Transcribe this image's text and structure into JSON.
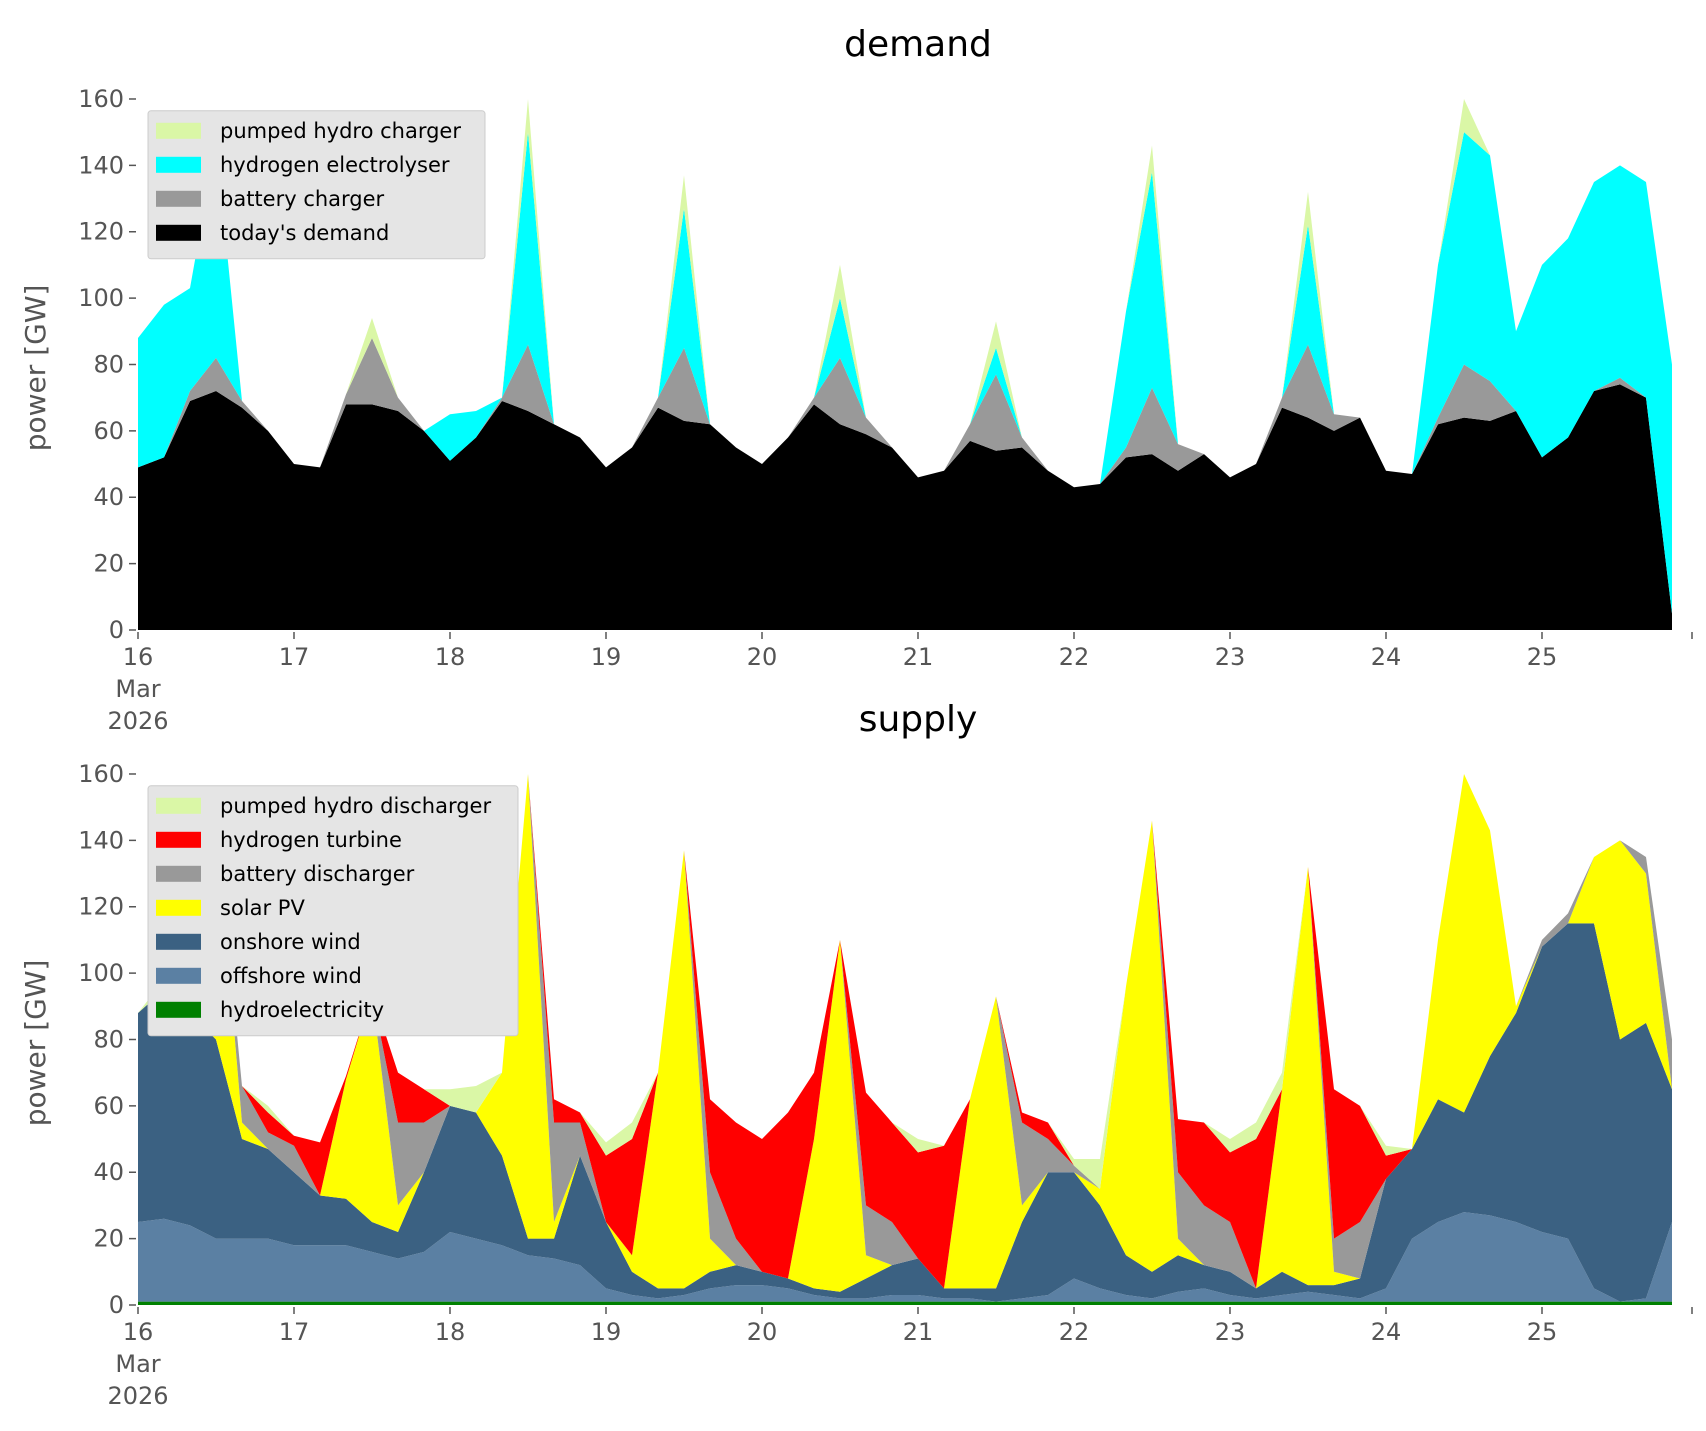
{
  "chart_data": [
    {
      "type": "stacked_area",
      "title": "demand",
      "ylabel": "power [GW]",
      "x": [
        "2026-03-16T00:00",
        "2026-03-16T04:00",
        "2026-03-16T08:00",
        "2026-03-16T12:00",
        "2026-03-16T16:00",
        "2026-03-16T20:00",
        "2026-03-17T00:00",
        "2026-03-17T04:00",
        "2026-03-17T08:00",
        "2026-03-17T12:00",
        "2026-03-17T16:00",
        "2026-03-17T20:00",
        "2026-03-18T00:00",
        "2026-03-18T04:00",
        "2026-03-18T08:00",
        "2026-03-18T12:00",
        "2026-03-18T16:00",
        "2026-03-18T20:00",
        "2026-03-19T00:00",
        "2026-03-19T04:00",
        "2026-03-19T08:00",
        "2026-03-19T12:00",
        "2026-03-19T16:00",
        "2026-03-19T20:00",
        "2026-03-20T00:00",
        "2026-03-20T04:00",
        "2026-03-20T08:00",
        "2026-03-20T12:00",
        "2026-03-20T16:00",
        "2026-03-20T20:00",
        "2026-03-21T00:00",
        "2026-03-21T04:00",
        "2026-03-21T08:00",
        "2026-03-21T12:00",
        "2026-03-21T16:00",
        "2026-03-21T20:00",
        "2026-03-22T00:00",
        "2026-03-22T04:00",
        "2026-03-22T08:00",
        "2026-03-22T12:00",
        "2026-03-22T16:00",
        "2026-03-22T20:00",
        "2026-03-23T00:00",
        "2026-03-23T04:00",
        "2026-03-23T08:00",
        "2026-03-23T12:00",
        "2026-03-23T16:00",
        "2026-03-23T20:00",
        "2026-03-24T00:00",
        "2026-03-24T04:00",
        "2026-03-24T08:00",
        "2026-03-24T12:00",
        "2026-03-24T16:00",
        "2026-03-24T20:00",
        "2026-03-25T00:00",
        "2026-03-25T04:00",
        "2026-03-25T08:00",
        "2026-03-25T12:00",
        "2026-03-25T16:00",
        "2026-03-25T20:00"
      ],
      "xlim": [
        "2026-03-16T00:00",
        "2026-03-26T00:00"
      ],
      "xticks": [
        {
          "value": "2026-03-16T00:00",
          "label": [
            "16",
            "Mar",
            "2026"
          ]
        },
        {
          "value": "2026-03-17T00:00",
          "label": "17"
        },
        {
          "value": "2026-03-18T00:00",
          "label": "18"
        },
        {
          "value": "2026-03-19T00:00",
          "label": "19"
        },
        {
          "value": "2026-03-20T00:00",
          "label": "20"
        },
        {
          "value": "2026-03-21T00:00",
          "label": "21"
        },
        {
          "value": "2026-03-22T00:00",
          "label": "22"
        },
        {
          "value": "2026-03-23T00:00",
          "label": "23"
        },
        {
          "value": "2026-03-24T00:00",
          "label": "24"
        },
        {
          "value": "2026-03-25T00:00",
          "label": "25"
        }
      ],
      "ylim": [
        0,
        170
      ],
      "yticks": [
        0,
        20,
        40,
        60,
        80,
        100,
        120,
        140,
        160
      ],
      "legend": "upper left",
      "series": [
        {
          "name": "pumped hydro charger",
          "color": "#daf7a6",
          "values": [
            0,
            0,
            0,
            0,
            0,
            0,
            0,
            0,
            0,
            6,
            0,
            0,
            0,
            0,
            0,
            10,
            0,
            0,
            0,
            0,
            0,
            10,
            0,
            0,
            0,
            0,
            0,
            10,
            0,
            0,
            0,
            0,
            0,
            8,
            0,
            0,
            0,
            0,
            0,
            8,
            0,
            0,
            0,
            0,
            0,
            10,
            0,
            0,
            0,
            0,
            0,
            10,
            0,
            0,
            0,
            0,
            0,
            0,
            0,
            0
          ]
        },
        {
          "name": "hydrogen electrolyser",
          "color": "#00ffff",
          "values": [
            39,
            46,
            31,
            65,
            0,
            0,
            0,
            0,
            0,
            0,
            0,
            0,
            14,
            8,
            0,
            64,
            0,
            0,
            0,
            0,
            0,
            42,
            0,
            0,
            0,
            0,
            0,
            18,
            0,
            0,
            0,
            0,
            0,
            8,
            0,
            0,
            0,
            0,
            41,
            65,
            0,
            0,
            0,
            0,
            0,
            36,
            0,
            0,
            0,
            0,
            46,
            70,
            68,
            24,
            58,
            60,
            63,
            64,
            65,
            75
          ]
        },
        {
          "name": "battery charger",
          "color": "#999999",
          "values": [
            0,
            0,
            3,
            10,
            2,
            0,
            0,
            0,
            3,
            20,
            4,
            0,
            0,
            0,
            1,
            20,
            0,
            0,
            0,
            0,
            3,
            22,
            0,
            0,
            0,
            0,
            2,
            20,
            5,
            0,
            0,
            0,
            5,
            23,
            3,
            0,
            0,
            0,
            3,
            20,
            8,
            0,
            0,
            0,
            3,
            22,
            5,
            0,
            0,
            0,
            2,
            16,
            12,
            0,
            0,
            0,
            0,
            2,
            0,
            0
          ]
        },
        {
          "name": "today's demand",
          "color": "#000000",
          "values": [
            49,
            52,
            69,
            72,
            67,
            60,
            50,
            49,
            68,
            68,
            66,
            60,
            51,
            58,
            69,
            66,
            62,
            58,
            49,
            55,
            67,
            63,
            62,
            55,
            50,
            58,
            68,
            62,
            59,
            55,
            46,
            48,
            57,
            54,
            55,
            48,
            43,
            44,
            52,
            53,
            48,
            53,
            46,
            50,
            67,
            64,
            60,
            64,
            48,
            47,
            62,
            64,
            63,
            66,
            52,
            58,
            72,
            74,
            70,
            5
          ]
        }
      ]
    },
    {
      "type": "stacked_area",
      "title": "supply",
      "ylabel": "power [GW]",
      "x": [
        "2026-03-16T00:00",
        "2026-03-16T04:00",
        "2026-03-16T08:00",
        "2026-03-16T12:00",
        "2026-03-16T16:00",
        "2026-03-16T20:00",
        "2026-03-17T00:00",
        "2026-03-17T04:00",
        "2026-03-17T08:00",
        "2026-03-17T12:00",
        "2026-03-17T16:00",
        "2026-03-17T20:00",
        "2026-03-18T00:00",
        "2026-03-18T04:00",
        "2026-03-18T08:00",
        "2026-03-18T12:00",
        "2026-03-18T16:00",
        "2026-03-18T20:00",
        "2026-03-19T00:00",
        "2026-03-19T04:00",
        "2026-03-19T08:00",
        "2026-03-19T12:00",
        "2026-03-19T16:00",
        "2026-03-19T20:00",
        "2026-03-20T00:00",
        "2026-03-20T04:00",
        "2026-03-20T08:00",
        "2026-03-20T12:00",
        "2026-03-20T16:00",
        "2026-03-20T20:00",
        "2026-03-21T00:00",
        "2026-03-21T04:00",
        "2026-03-21T08:00",
        "2026-03-21T12:00",
        "2026-03-21T16:00",
        "2026-03-21T20:00",
        "2026-03-22T00:00",
        "2026-03-22T04:00",
        "2026-03-22T08:00",
        "2026-03-22T12:00",
        "2026-03-22T16:00",
        "2026-03-22T20:00",
        "2026-03-23T00:00",
        "2026-03-23T04:00",
        "2026-03-23T08:00",
        "2026-03-23T12:00",
        "2026-03-23T16:00",
        "2026-03-23T20:00",
        "2026-03-24T00:00",
        "2026-03-24T04:00",
        "2026-03-24T08:00",
        "2026-03-24T12:00",
        "2026-03-24T16:00",
        "2026-03-24T20:00",
        "2026-03-25T00:00",
        "2026-03-25T04:00",
        "2026-03-25T08:00",
        "2026-03-25T12:00",
        "2026-03-25T16:00",
        "2026-03-25T20:00"
      ],
      "xlim": [
        "2026-03-16T00:00",
        "2026-03-26T00:00"
      ],
      "xticks": [
        {
          "value": "2026-03-16T00:00",
          "label": [
            "16",
            "Mar",
            "2026"
          ]
        },
        {
          "value": "2026-03-17T00:00",
          "label": "17"
        },
        {
          "value": "2026-03-18T00:00",
          "label": "18"
        },
        {
          "value": "2026-03-19T00:00",
          "label": "19"
        },
        {
          "value": "2026-03-20T00:00",
          "label": "20"
        },
        {
          "value": "2026-03-21T00:00",
          "label": "21"
        },
        {
          "value": "2026-03-22T00:00",
          "label": "22"
        },
        {
          "value": "2026-03-23T00:00",
          "label": "23"
        },
        {
          "value": "2026-03-24T00:00",
          "label": "24"
        },
        {
          "value": "2026-03-25T00:00",
          "label": "25"
        }
      ],
      "ylim": [
        0,
        170
      ],
      "yticks": [
        0,
        20,
        40,
        60,
        80,
        100,
        120,
        140,
        160
      ],
      "legend": "upper left",
      "series": [
        {
          "name": "pumped hydro discharger",
          "color": "#daf7a6",
          "values": [
            0,
            3,
            0,
            0,
            0,
            2,
            0,
            0,
            0,
            0,
            0,
            0,
            5,
            8,
            0,
            0,
            0,
            0,
            4,
            5,
            0,
            0,
            0,
            0,
            0,
            0,
            0,
            0,
            0,
            0,
            4,
            0,
            0,
            0,
            0,
            0,
            2,
            9,
            0,
            0,
            0,
            0,
            4,
            5,
            5,
            0,
            0,
            0,
            3,
            0,
            0,
            0,
            0,
            0,
            0,
            0,
            0,
            0,
            0,
            0
          ]
        },
        {
          "name": "hydrogen turbine",
          "color": "#ff0000",
          "values": [
            0,
            0,
            0,
            0,
            0,
            6,
            3,
            16,
            1,
            0,
            15,
            10,
            0,
            0,
            0,
            0,
            7,
            3,
            20,
            35,
            0,
            0,
            22,
            35,
            40,
            50,
            20,
            0,
            34,
            30,
            32,
            43,
            0,
            0,
            3,
            5,
            0,
            0,
            0,
            0,
            16,
            25,
            21,
            45,
            0,
            0,
            45,
            35,
            7,
            0,
            0,
            0,
            0,
            0,
            0,
            0,
            0,
            0,
            0,
            0
          ]
        },
        {
          "name": "battery discharger",
          "color": "#999999",
          "values": [
            0,
            0,
            0,
            0,
            11,
            5,
            8,
            0,
            0,
            0,
            25,
            15,
            0,
            0,
            0,
            0,
            30,
            10,
            0,
            0,
            0,
            0,
            20,
            8,
            0,
            0,
            0,
            0,
            15,
            13,
            0,
            0,
            0,
            0,
            25,
            10,
            2,
            0,
            0,
            0,
            20,
            18,
            15,
            0,
            0,
            0,
            10,
            17,
            0,
            0,
            0,
            0,
            0,
            0,
            2,
            3,
            0,
            0,
            5,
            15
          ]
        },
        {
          "name": "solar PV",
          "color": "#ffff00",
          "values": [
            0,
            0,
            15,
            67,
            5,
            0,
            0,
            0,
            36,
            69,
            8,
            0,
            0,
            0,
            25,
            140,
            5,
            0,
            0,
            5,
            65,
            132,
            10,
            0,
            0,
            0,
            45,
            106,
            7,
            0,
            0,
            0,
            57,
            88,
            5,
            0,
            0,
            5,
            81,
            136,
            5,
            0,
            0,
            0,
            55,
            126,
            4,
            0,
            0,
            0,
            48,
            102,
            68,
            2,
            0,
            0,
            20,
            60,
            45,
            0
          ]
        },
        {
          "name": "onshore wind",
          "color": "#3b6182",
          "values": [
            63,
            69,
            64,
            60,
            30,
            27,
            22,
            15,
            14,
            9,
            8,
            24,
            38,
            38,
            27,
            5,
            6,
            33,
            20,
            7,
            3,
            2,
            5,
            6,
            4,
            3,
            2,
            2,
            6,
            9,
            11,
            3,
            3,
            4,
            23,
            37,
            32,
            25,
            12,
            8,
            11,
            7,
            7,
            3,
            7,
            2,
            3,
            6,
            33,
            27,
            37,
            30,
            48,
            63,
            86,
            95,
            110,
            79,
            83,
            40
          ]
        },
        {
          "name": "offshore wind",
          "color": "#5b80a3",
          "values": [
            24,
            25,
            23,
            19,
            19,
            19,
            17,
            17,
            17,
            15,
            13,
            15,
            21,
            19,
            17,
            14,
            13,
            11,
            4,
            2,
            1,
            2,
            4,
            5,
            5,
            4,
            2,
            1,
            1,
            2,
            2,
            1,
            1,
            0,
            1,
            2,
            7,
            4,
            2,
            1,
            3,
            4,
            2,
            1,
            2,
            3,
            2,
            1,
            4,
            19,
            24,
            27,
            26,
            24,
            21,
            19,
            4,
            0,
            1,
            24
          ]
        },
        {
          "name": "hydroelectricity",
          "color": "#008000",
          "values": [
            1,
            1,
            1,
            1,
            1,
            1,
            1,
            1,
            1,
            1,
            1,
            1,
            1,
            1,
            1,
            1,
            1,
            1,
            1,
            1,
            1,
            1,
            1,
            1,
            1,
            1,
            1,
            1,
            1,
            1,
            1,
            1,
            1,
            1,
            1,
            1,
            1,
            1,
            1,
            1,
            1,
            1,
            1,
            1,
            1,
            1,
            1,
            1,
            1,
            1,
            1,
            1,
            1,
            1,
            1,
            1,
            1,
            1,
            1,
            1
          ]
        }
      ]
    }
  ]
}
